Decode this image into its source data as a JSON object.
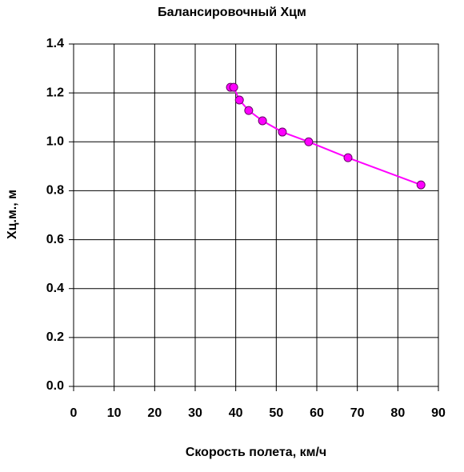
{
  "chart_data": {
    "type": "line",
    "title": "Балансировочный Хцм",
    "x_label": "Скорость полета, км/ч",
    "y_label": "Хц.м., м",
    "grid": true,
    "xlim": [
      0,
      90
    ],
    "xticks": [
      0,
      10,
      20,
      30,
      40,
      50,
      60,
      70,
      80,
      90
    ],
    "ylim": [
      0,
      1.4
    ],
    "yticks": [
      {
        "value": 0,
        "label": "0.0"
      },
      0.2,
      0.4,
      0.6,
      0.8,
      {
        "value": 1,
        "label": "1.0"
      },
      1.2,
      1.4
    ],
    "series": [
      {
        "color": "#ff00ff",
        "x": [
          38.7,
          39.5,
          40.9,
          43.2,
          46.6,
          51.5,
          58.0,
          67.7,
          85.7
        ],
        "values": [
          1.223,
          1.223,
          1.171,
          1.128,
          1.086,
          1.04,
          1.0,
          0.935,
          0.824
        ]
      }
    ]
  }
}
